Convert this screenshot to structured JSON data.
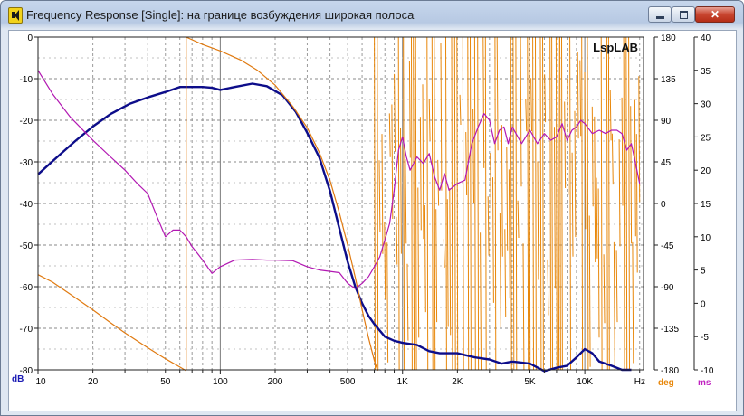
{
  "window": {
    "title": "Frequency Response [Single]: на границе возбуждения широкая полоса",
    "icon": "speaker-icon"
  },
  "chart_data": {
    "type": "line",
    "watermark": "LspLAB",
    "grid": true,
    "x_axis": {
      "scale": "log",
      "range": [
        10,
        21000
      ],
      "unit_label": "Hz",
      "ticks": [
        {
          "v": 10,
          "label": "10"
        },
        {
          "v": 20,
          "label": "20"
        },
        {
          "v": 50,
          "label": "50"
        },
        {
          "v": 100,
          "label": "100"
        },
        {
          "v": 200,
          "label": "200"
        },
        {
          "v": 500,
          "label": "500"
        },
        {
          "v": 1000,
          "label": "1K"
        },
        {
          "v": 2000,
          "label": "2K"
        },
        {
          "v": 5000,
          "label": "5K"
        },
        {
          "v": 10000,
          "label": "10K"
        }
      ]
    },
    "y_axis_db": {
      "range": [
        -80,
        0
      ],
      "unit_label": "dB",
      "color": "#1a1ab4",
      "ticks": [
        "0",
        "-10",
        "-20",
        "-30",
        "-40",
        "-50",
        "-60",
        "-70",
        "-80"
      ]
    },
    "y_axis_deg": {
      "range": [
        -180,
        180
      ],
      "unit_label": "deg",
      "color": "#e8870a",
      "ticks": [
        "180",
        "135",
        "90",
        "45",
        "0",
        "-45",
        "-90",
        "-135",
        "-180"
      ]
    },
    "y_axis_ms": {
      "range": [
        -10,
        40
      ],
      "unit_label": "ms",
      "color": "#c020c0",
      "ticks": [
        "40",
        "35",
        "30",
        "25",
        "20",
        "15",
        "10",
        "5",
        "0",
        "-5",
        "-10"
      ]
    },
    "series": [
      {
        "key": "magnitude",
        "axis": "db",
        "color": "#0d0d8a",
        "x": [
          10,
          13,
          16,
          20,
          25,
          32,
          40,
          50,
          60,
          70,
          80,
          90,
          100,
          120,
          150,
          180,
          220,
          260,
          300,
          350,
          400,
          450,
          500,
          550,
          600,
          650,
          700,
          800,
          900,
          1000,
          1200,
          1400,
          1600,
          2000,
          2500,
          3000,
          3500,
          4000,
          5000,
          6000,
          7000,
          8000,
          9000,
          10000,
          11000,
          12000,
          14000,
          16000,
          18000
        ],
        "y": [
          -33,
          -28.5,
          -25,
          -21.5,
          -18.5,
          -16,
          -14.5,
          -13.2,
          -12,
          -12,
          -12,
          -12.2,
          -12.7,
          -12,
          -11.2,
          -11.8,
          -14,
          -18,
          -23,
          -29,
          -37,
          -46,
          -54,
          -60,
          -64,
          -67,
          -69,
          -72,
          -73,
          -73.5,
          -74,
          -75.5,
          -76,
          -76,
          -77,
          -77.5,
          -78.5,
          -78,
          -78.5,
          -80.3,
          -79.5,
          -79,
          -77,
          -75,
          -76,
          -78,
          -79,
          -80,
          -80
        ]
      },
      {
        "key": "phase-unwrapped",
        "axis": "deg",
        "color": "#e07a10",
        "x": [
          10,
          12,
          15,
          20,
          25,
          30,
          40,
          50,
          60,
          65
        ],
        "y": [
          -77,
          -85,
          -98,
          -115,
          -129,
          -140,
          -156,
          -168,
          -177,
          -181
        ]
      },
      {
        "key": "phase-main",
        "axis": "deg",
        "color": "#e07a10",
        "x": [
          65,
          80,
          100,
          130,
          160,
          200,
          250,
          300,
          350,
          400,
          450,
          500,
          550,
          600,
          650,
          700,
          730
        ],
        "y": [
          180,
          172,
          165,
          155,
          144,
          128,
          105,
          82,
          55,
          25,
          -10,
          -45,
          -80,
          -115,
          -145,
          -170,
          -181
        ]
      },
      {
        "key": "group-delay",
        "axis": "ms",
        "color": "#b218b2",
        "x": [
          10,
          12,
          15,
          20,
          25,
          30,
          35,
          40,
          45,
          50,
          55,
          60,
          65,
          70,
          75,
          80,
          90,
          100,
          120,
          150,
          180,
          200,
          250,
          300,
          350,
          400,
          450,
          500,
          550,
          600,
          650,
          700,
          750,
          800,
          850,
          900,
          950,
          1000,
          1050,
          1100,
          1150,
          1200,
          1300,
          1400,
          1500,
          1600,
          1700,
          1800,
          2000,
          2200,
          2400,
          2600,
          2800,
          3000,
          3200,
          3400,
          3600,
          3800,
          4000,
          4500,
          5000,
          5500,
          6000,
          6500,
          7000,
          7500,
          8000,
          8500,
          9000,
          9500,
          10000,
          11000,
          12000,
          13000,
          14000,
          15000,
          16000,
          17000,
          18000,
          19000,
          20000
        ],
        "y": [
          35,
          31.5,
          28,
          24.5,
          22,
          20,
          18,
          16.5,
          13,
          10,
          11,
          11,
          10,
          8.5,
          7.5,
          6.5,
          4.5,
          5.5,
          6.5,
          6.6,
          6.5,
          6.5,
          6.4,
          5.5,
          5.0,
          4.8,
          4.6,
          3.0,
          2.2,
          3.0,
          4.0,
          5.5,
          7.0,
          9.5,
          12.0,
          17.0,
          23.0,
          25.0,
          22.0,
          20.0,
          21.0,
          22.0,
          21.0,
          22.5,
          19.0,
          17.0,
          19.5,
          17.0,
          18.0,
          18.5,
          24.0,
          26.5,
          28.5,
          27.5,
          24.0,
          26.0,
          26.5,
          24.0,
          26.5,
          24.0,
          26.0,
          24.0,
          25.5,
          24.5,
          25.0,
          27.0,
          24.5,
          26.0,
          26.5,
          27.5,
          27.0,
          25.5,
          26.0,
          25.5,
          26.0,
          26.0,
          25.5,
          23.0,
          24.0,
          21.0,
          18.0
        ]
      }
    ],
    "phase_noise_region": {
      "axis": "deg",
      "x_range": [
        700,
        21000
      ],
      "y_range": [
        -180,
        180
      ],
      "color": "#e8870a"
    }
  }
}
